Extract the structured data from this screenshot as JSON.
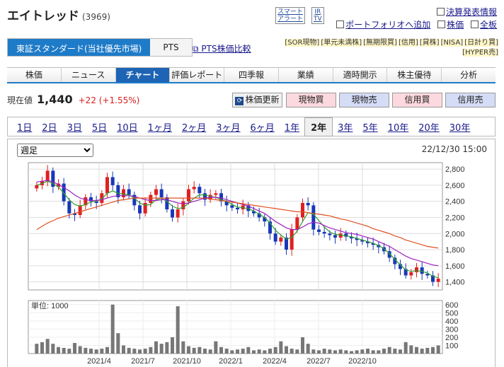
{
  "company": {
    "name": "エイトレッド",
    "code": "(3969)"
  },
  "logos": {
    "smart_alert": "スマート\nアラート",
    "ir_tv": "IR\nTV"
  },
  "toplinks": [
    {
      "label": "決算発表情報"
    },
    {
      "label": "ポートフォリオへ追加"
    },
    {
      "label": "株価"
    },
    {
      "label": "全板"
    }
  ],
  "market": {
    "active": "東証スタンダード(当社優先市場)",
    "other": "PTS",
    "pts_compare": "PTS株価比較"
  },
  "badges": [
    "[SOR現物]",
    "[単元未満株]",
    "[無期限買]",
    "[信用]",
    "[貸株]",
    "[NISA]",
    "[日計り買]",
    "[HYPER売]"
  ],
  "tabs": [
    "株価",
    "ニュース",
    "チャート",
    "評価レポート",
    "四季報",
    "業績",
    "適時開示",
    "株主優待",
    "分析"
  ],
  "active_tab": "チャート",
  "price": {
    "label": "現在値",
    "value": "1,440",
    "change": "+22 (+1.55%)"
  },
  "buttons": {
    "refresh": "株価更新",
    "spot_buy": "現物買",
    "spot_sell": "現物売",
    "margin_buy": "信用買",
    "margin_sell": "信用売"
  },
  "periods": [
    "1日",
    "2日",
    "3日",
    "5日",
    "10日",
    "1ヶ月",
    "2ヶ月",
    "3ヶ月",
    "6ヶ月",
    "1年",
    "2年",
    "3年",
    "5年",
    "10年",
    "20年",
    "30年"
  ],
  "active_period": "2年",
  "frequency": {
    "selected": "週足",
    "options": [
      "週足"
    ]
  },
  "chart_date": "22/12/30 15:00",
  "volume_unit": "単位: 1000",
  "colors": {
    "up": "#e02020",
    "down": "#1838b8",
    "ma_short": "#2ea02e",
    "ma_mid": "#a020c0",
    "ma_long": "#e05020"
  },
  "chart_data": {
    "type": "candlestick",
    "price_ticks": [
      "2,800",
      "2,600",
      "2,400",
      "2,200",
      "2,000",
      "1,800",
      "1,600",
      "1,400"
    ],
    "ylim": [
      1300,
      2880
    ],
    "volume_ticks": [
      "600",
      "500",
      "400",
      "300",
      "200",
      "100"
    ],
    "volume_ylim": [
      0,
      650
    ],
    "x_ticks": [
      "2021/4",
      "2021/7",
      "2021/10",
      "2022/1",
      "2022/4",
      "2022/7",
      "2022/10"
    ],
    "closes": [
      2600,
      2650,
      2780,
      2580,
      2620,
      2400,
      2250,
      2230,
      2350,
      2450,
      2400,
      2380,
      2500,
      2700,
      2600,
      2450,
      2550,
      2480,
      2350,
      2250,
      2380,
      2480,
      2550,
      2450,
      2300,
      2200,
      2300,
      2400,
      2550,
      2580,
      2500,
      2420,
      2480,
      2500,
      2400,
      2350,
      2320,
      2300,
      2350,
      2280,
      2250,
      2200,
      2150,
      2000,
      1900,
      1950,
      1800,
      2050,
      2200,
      2380,
      2350,
      2050,
      2020,
      2000,
      1980,
      1950,
      2000,
      1960,
      1940,
      1920,
      1900,
      1880,
      1860,
      1830,
      1780,
      1700,
      1620,
      1560,
      1480,
      1520,
      1580,
      1500,
      1480,
      1400,
      1440
    ],
    "ma_short": [
      2600,
      2620,
      2650,
      2620,
      2580,
      2500,
      2420,
      2360,
      2340,
      2360,
      2390,
      2400,
      2430,
      2500,
      2530,
      2500,
      2490,
      2480,
      2440,
      2380,
      2350,
      2360,
      2420,
      2440,
      2400,
      2340,
      2310,
      2320,
      2380,
      2440,
      2480,
      2480,
      2460,
      2450,
      2420,
      2400,
      2360,
      2330,
      2320,
      2310,
      2280,
      2240,
      2200,
      2130,
      2040,
      1980,
      1930,
      1950,
      2030,
      2150,
      2260,
      2240,
      2160,
      2080,
      2020,
      1990,
      1980,
      1970,
      1960,
      1940,
      1920,
      1900,
      1880,
      1850,
      1810,
      1750,
      1680,
      1610,
      1550,
      1530,
      1540,
      1530,
      1510,
      1470,
      1450
    ],
    "ma_mid": [
      2640,
      2650,
      2660,
      2640,
      2610,
      2570,
      2530,
      2480,
      2440,
      2420,
      2410,
      2410,
      2420,
      2440,
      2460,
      2470,
      2470,
      2470,
      2460,
      2440,
      2420,
      2410,
      2410,
      2420,
      2420,
      2400,
      2380,
      2370,
      2380,
      2400,
      2420,
      2440,
      2450,
      2450,
      2440,
      2420,
      2400,
      2380,
      2360,
      2340,
      2310,
      2280,
      2250,
      2200,
      2150,
      2110,
      2070,
      2050,
      2050,
      2080,
      2120,
      2140,
      2130,
      2100,
      2070,
      2050,
      2030,
      2010,
      2000,
      1990,
      1970,
      1950,
      1930,
      1900,
      1870,
      1840,
      1800,
      1760,
      1720,
      1690,
      1670,
      1650,
      1630,
      1610,
      1600
    ],
    "ma_long": [
      2050,
      2090,
      2130,
      2160,
      2190,
      2210,
      2230,
      2250,
      2270,
      2290,
      2310,
      2330,
      2350,
      2370,
      2390,
      2410,
      2420,
      2430,
      2440,
      2440,
      2440,
      2440,
      2440,
      2440,
      2440,
      2440,
      2440,
      2440,
      2440,
      2440,
      2440,
      2440,
      2430,
      2420,
      2410,
      2400,
      2390,
      2380,
      2370,
      2360,
      2350,
      2340,
      2330,
      2320,
      2310,
      2300,
      2290,
      2280,
      2270,
      2270,
      2260,
      2250,
      2240,
      2230,
      2220,
      2200,
      2180,
      2170,
      2150,
      2130,
      2110,
      2090,
      2060,
      2040,
      2020,
      2000,
      1970,
      1950,
      1920,
      1900,
      1880,
      1860,
      1840,
      1830,
      1820
    ],
    "volumes": [
      120,
      140,
      180,
      120,
      80,
      70,
      60,
      130,
      90,
      70,
      60,
      50,
      60,
      80,
      600,
      250,
      100,
      70,
      60,
      50,
      60,
      80,
      150,
      120,
      140,
      200,
      580,
      150,
      90,
      70,
      80,
      60,
      50,
      150,
      80,
      60,
      40,
      50,
      60,
      80,
      40,
      50,
      40,
      60,
      80,
      150,
      90,
      60,
      50,
      200,
      120,
      50,
      40,
      60,
      50,
      40,
      50,
      40,
      30,
      40,
      50,
      60,
      40,
      40,
      60,
      80,
      60,
      50,
      140,
      100,
      80,
      60,
      70,
      80,
      100
    ]
  }
}
